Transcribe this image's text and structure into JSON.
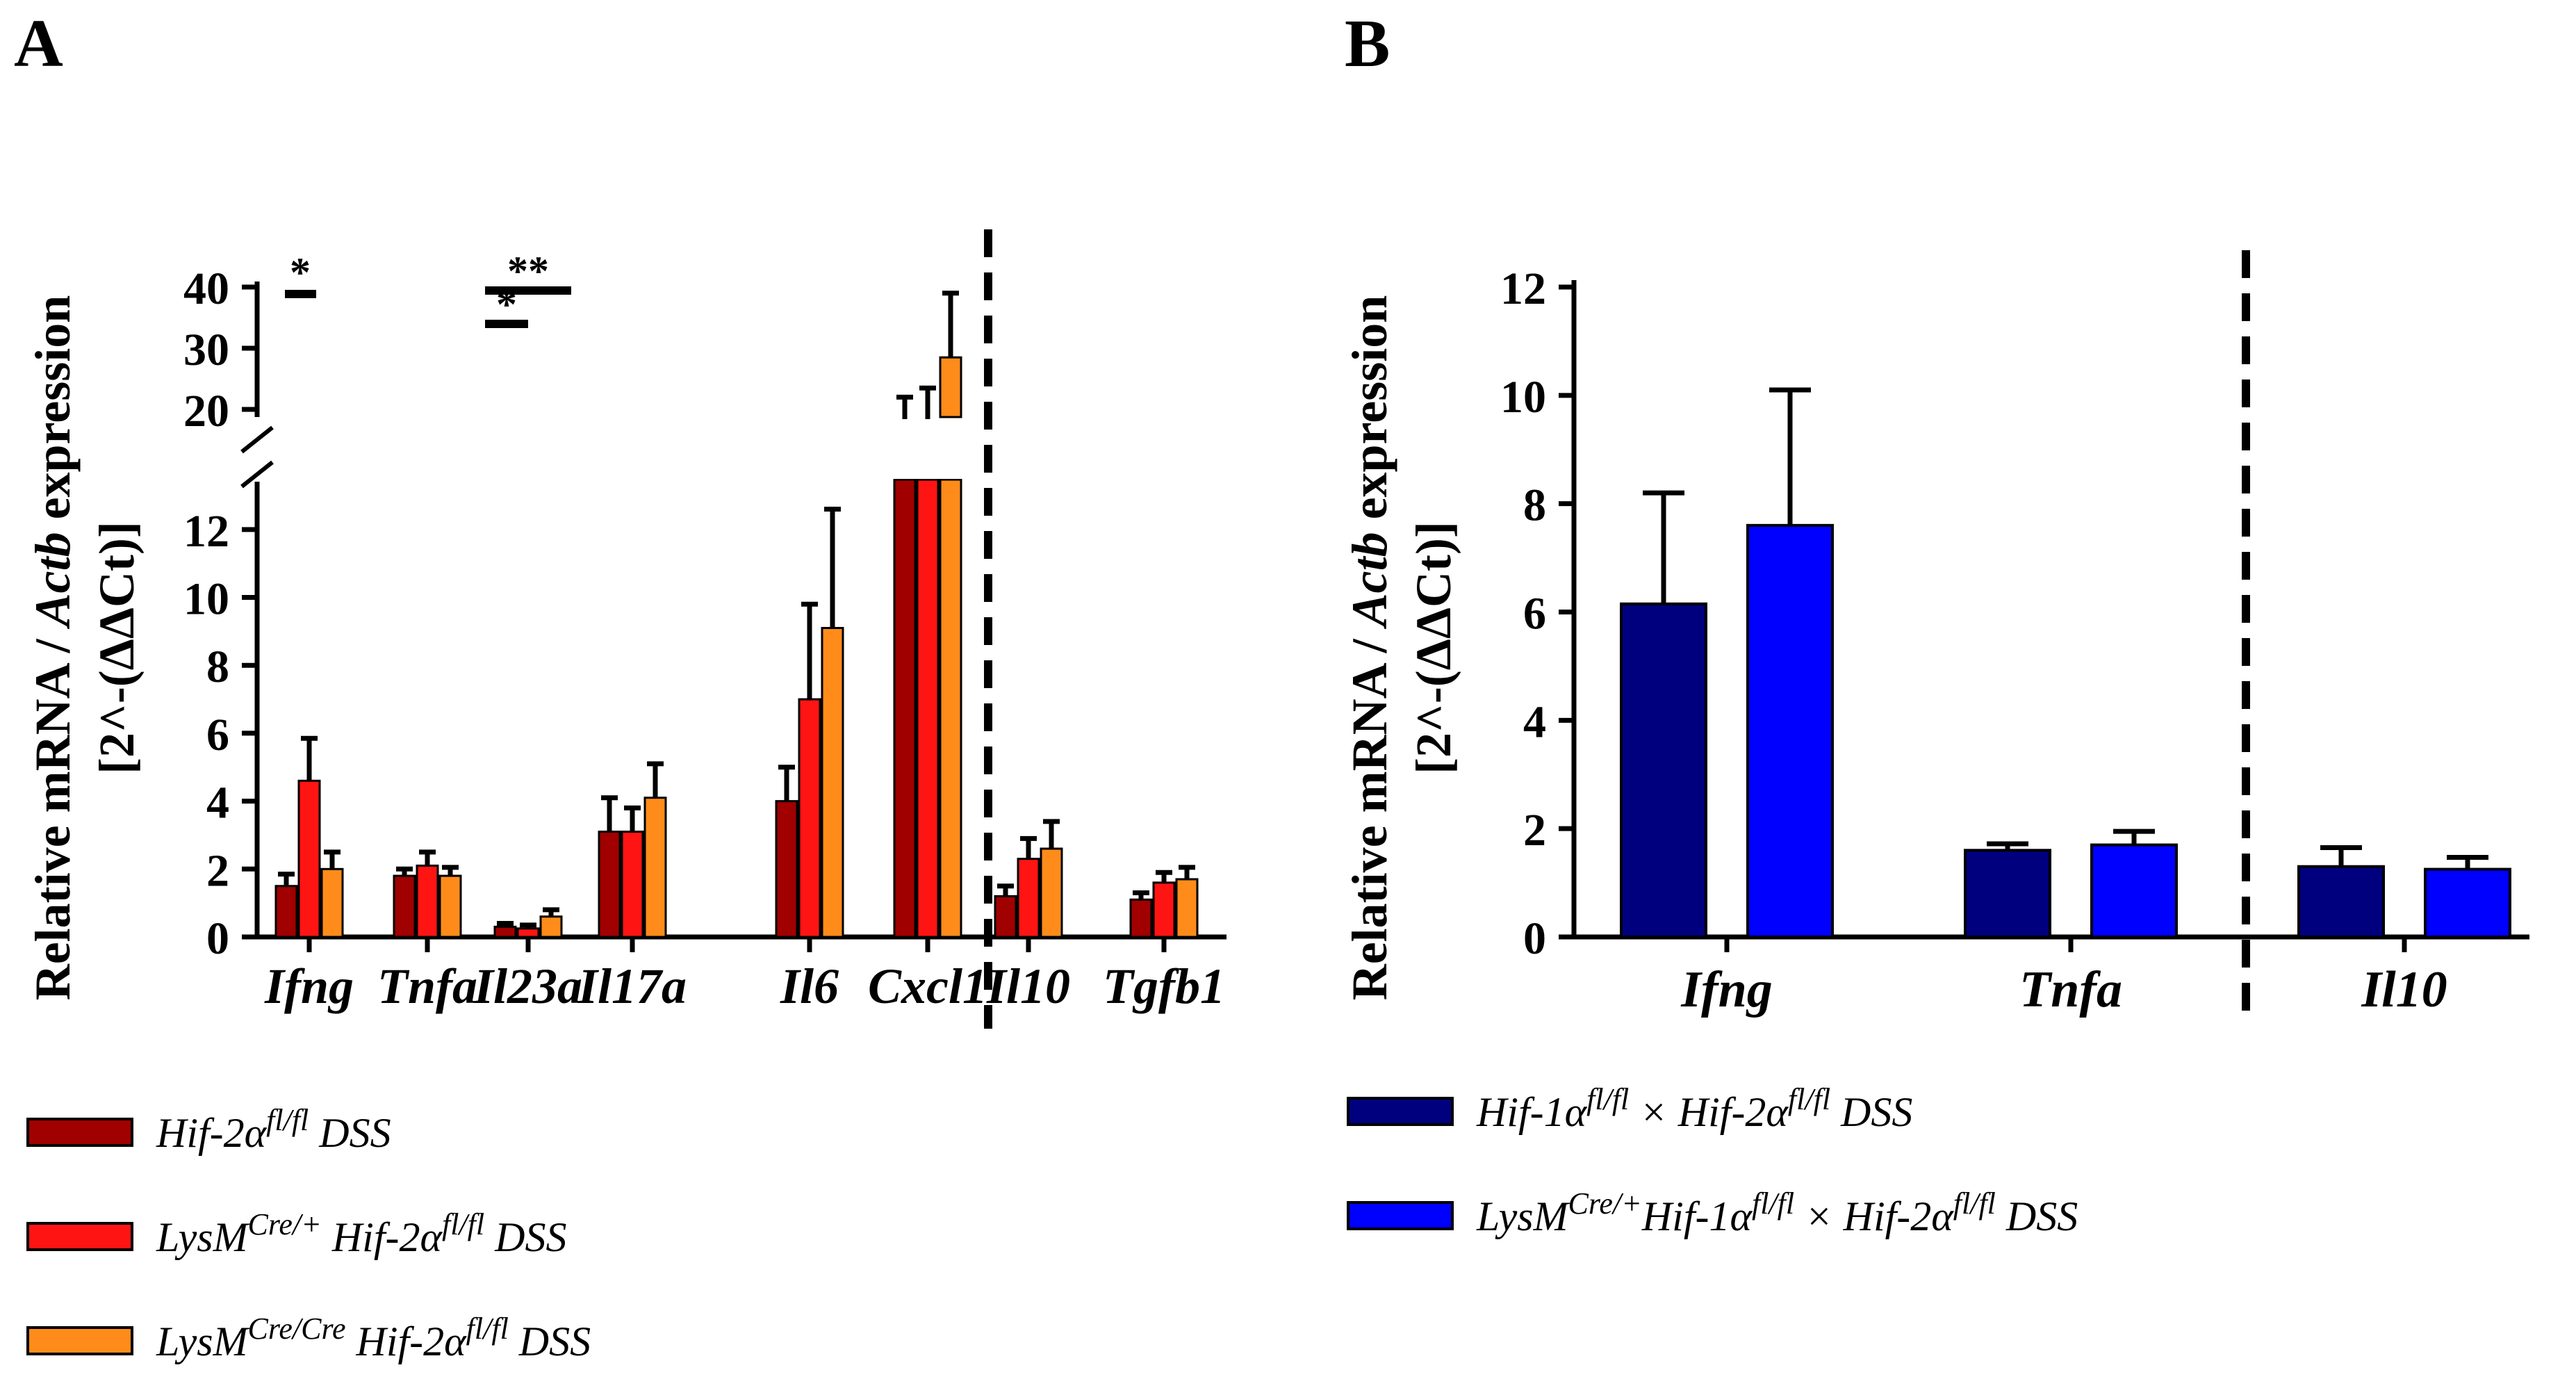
{
  "panels": {
    "A": {
      "letter": "A",
      "ylabel_line1": "Relative mRNA / ",
      "ylabel_gene": "Actb",
      "ylabel_line1_end": " expression",
      "ylabel_line2": "[2^-(ΔΔCt)]"
    },
    "B": {
      "letter": "B",
      "ylabel_line1": "Relative mRNA / ",
      "ylabel_gene": "Actb",
      "ylabel_line1_end": " expression",
      "ylabel_line2": "[2^-(ΔΔCt)]"
    }
  },
  "legend_A": [
    {
      "parts": [
        {
          "t": "Hif-2α"
        },
        {
          "t": "fl/fl",
          "sup": true
        },
        {
          "t": " DSS"
        }
      ]
    },
    {
      "parts": [
        {
          "t": "LysM"
        },
        {
          "t": "Cre/+",
          "sup": true
        },
        {
          "t": " Hif-2α"
        },
        {
          "t": "fl/fl",
          "sup": true
        },
        {
          "t": " DSS"
        }
      ]
    },
    {
      "parts": [
        {
          "t": "LysM"
        },
        {
          "t": "Cre/Cre",
          "sup": true
        },
        {
          "t": " Hif-2α"
        },
        {
          "t": "fl/fl",
          "sup": true
        },
        {
          "t": " DSS"
        }
      ]
    }
  ],
  "legend_B": [
    {
      "parts": [
        {
          "t": "Hif-1α"
        },
        {
          "t": "fl/fl",
          "sup": true
        },
        {
          "t": " × Hif-2α"
        },
        {
          "t": "fl/fl",
          "sup": true
        },
        {
          "t": " DSS"
        }
      ]
    },
    {
      "parts": [
        {
          "t": "LysM"
        },
        {
          "t": "Cre/+",
          "sup": true
        },
        {
          "t": "Hif-1α"
        },
        {
          "t": "fl/fl",
          "sup": true
        },
        {
          "t": " × Hif-2α"
        },
        {
          "t": "fl/fl",
          "sup": true
        },
        {
          "t": " DSS"
        }
      ]
    }
  ],
  "chart_data": [
    {
      "type": "bar",
      "panel": "A",
      "categories": [
        "Ifng",
        "Tnfa",
        "Il23a",
        "Il17a",
        "Il6",
        "Cxcl1",
        "Il10",
        "Tgfb1"
      ],
      "series": [
        {
          "name": "Hif-2α fl/fl DSS",
          "color": "#a00000",
          "values": [
            1.5,
            1.8,
            0.3,
            3.1,
            4.0,
            18.0,
            1.2,
            1.1
          ],
          "errors": [
            0.35,
            0.2,
            0.1,
            1.0,
            1.0,
            4.0,
            0.3,
            0.2
          ]
        },
        {
          "name": "LysM Cre/+ Hif-2α fl/fl DSS",
          "color": "#ff1414",
          "values": [
            4.6,
            2.1,
            0.25,
            3.1,
            7.0,
            18.0,
            2.3,
            1.6
          ],
          "errors": [
            1.25,
            0.4,
            0.1,
            0.7,
            2.8,
            5.5,
            0.6,
            0.3
          ]
        },
        {
          "name": "LysM Cre/Cre Hif-2α fl/fl DSS",
          "color": "#ff8c1a",
          "values": [
            2.0,
            1.8,
            0.6,
            4.1,
            9.1,
            28.5,
            2.6,
            1.7
          ],
          "errors": [
            0.5,
            0.25,
            0.2,
            1.0,
            3.5,
            10.5,
            0.8,
            0.35
          ]
        }
      ],
      "yaxis": {
        "lower": {
          "range": [
            0,
            13
          ],
          "ticks": [
            0,
            2,
            4,
            6,
            8,
            10,
            12
          ]
        },
        "upper": {
          "range": [
            15,
            40
          ],
          "ticks": [
            20,
            30,
            40
          ]
        },
        "broken": true
      },
      "separator_after_category": "Cxcl1",
      "significance": [
        {
          "label": "*",
          "between": [
            "Ifng",
            "Ifng"
          ],
          "level": "upper"
        },
        {
          "label": "**",
          "between": [
            "Il23a",
            "Il23a"
          ],
          "level": "upper"
        },
        {
          "label": "*",
          "between": [
            "Il23a",
            "Il23a"
          ],
          "level": "lower"
        }
      ]
    },
    {
      "type": "bar",
      "panel": "B",
      "categories": [
        "Ifng",
        "Tnfa",
        "Il10"
      ],
      "series": [
        {
          "name": "Hif-1α fl/fl × Hif-2α fl/fl DSS",
          "color": "#00007f",
          "values": [
            6.15,
            1.6,
            1.3
          ],
          "errors": [
            2.05,
            0.12,
            0.35
          ]
        },
        {
          "name": "LysM Cre/+ Hif-1α fl/fl × Hif-2α fl/fl DSS",
          "color": "#0000ff",
          "values": [
            7.6,
            1.7,
            1.25
          ],
          "errors": [
            2.5,
            0.25,
            0.22
          ]
        }
      ],
      "yaxis": {
        "range": [
          0,
          12
        ],
        "ticks": [
          0,
          2,
          4,
          6,
          8,
          10,
          12
        ]
      },
      "separator_after_category": "Tnfa"
    }
  ]
}
